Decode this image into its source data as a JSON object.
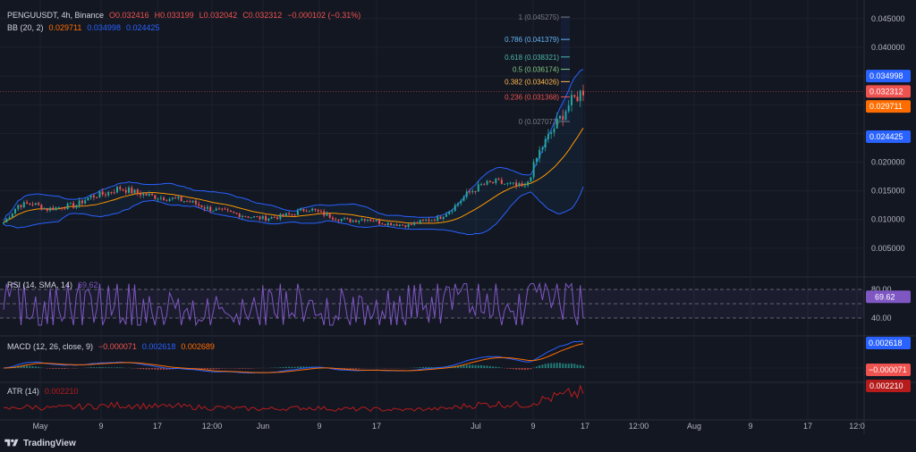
{
  "header": {
    "symbol": "PENGUUSDT, 4h, Binance",
    "o": "O0.032416",
    "h": "H0.033199",
    "l": "L0.032042",
    "c": "C0.032312",
    "chg": "−0.000102 (−0.31%)",
    "bb_label": "BB (20, 2)",
    "bb_v1": "0.029711",
    "bb_v2": "0.034998",
    "bb_v3": "0.024425"
  },
  "rsi": {
    "label": "RSI (14, SMA, 14)",
    "value": "69.62"
  },
  "macd": {
    "label": "MACD (12, 26, close, 9)",
    "v1": "−0.000071",
    "v2": "0.002618",
    "v3": "0.002689"
  },
  "atr": {
    "label": "ATR (14)",
    "value": "0.002210"
  },
  "footer": {
    "brand": "TradingView"
  },
  "colors": {
    "bg": "#131722",
    "up": "#26a69a",
    "down": "#ef5350",
    "band": "#2962ff",
    "basis": "#ff9800",
    "rsi": "#7e57c2",
    "macd": "#2962ff",
    "signal": "#ff6d00",
    "atr": "#b71c1c"
  },
  "chart_data": {
    "type": "candlestick",
    "price_axis": {
      "ticks": [
        "0.045000",
        "0.040000",
        "0.035000",
        "0.030000",
        "0.025000",
        "0.020000",
        "0.015000",
        "0.010000",
        "0.005000"
      ],
      "badges": [
        {
          "text": "0.034998",
          "value": 0.034998,
          "color": "#2962ff"
        },
        {
          "text": "0.032312",
          "value": 0.032312,
          "color": "#ef5350"
        },
        {
          "text": "0.029711",
          "value": 0.029711,
          "color": "#ff6d00"
        },
        {
          "text": "0.024425",
          "value": 0.024425,
          "color": "#2962ff"
        }
      ]
    },
    "rsi_axis": {
      "ticks": [
        "80.00",
        "40.00"
      ],
      "badge": "69.62"
    },
    "macd_badges": [
      {
        "text": "0.002618",
        "color": "#2962ff"
      },
      {
        "text": "−0.000071",
        "color": "#ef5350"
      }
    ],
    "atr_badge": {
      "text": "0.002210",
      "color": "#b71c1c"
    },
    "time_axis": [
      "May",
      "9",
      "17",
      "12:00",
      "Jun",
      "9",
      "17",
      "Jul",
      "9",
      "17",
      "12:00",
      "Aug",
      "9",
      "17",
      "12:0"
    ],
    "fib_levels": [
      {
        "label": "1 (0.045275)",
        "value": 0.045275,
        "color": "#787b86"
      },
      {
        "label": "0.786 (0.041379)",
        "value": 0.041379,
        "color": "#64b5f6"
      },
      {
        "label": "0.618 (0.038321)",
        "value": 0.038321,
        "color": "#4db6ac"
      },
      {
        "label": "0.5 (0.036174)",
        "value": 0.036174,
        "color": "#81c784"
      },
      {
        "label": "0.382 (0.034026)",
        "value": 0.034026,
        "color": "#ffb74d"
      },
      {
        "label": "0.236 (0.031368)",
        "value": 0.031368,
        "color": "#ef5350"
      },
      {
        "label": "0 (0.027073)",
        "value": 0.027073,
        "color": "#787b86"
      }
    ],
    "approx_close_path": [
      0.0095,
      0.0125,
      0.0128,
      0.0118,
      0.0122,
      0.0125,
      0.014,
      0.0145,
      0.0155,
      0.0148,
      0.0142,
      0.0138,
      0.0135,
      0.013,
      0.012,
      0.0115,
      0.011,
      0.0105,
      0.0102,
      0.0105,
      0.011,
      0.012,
      0.011,
      0.0102,
      0.0098,
      0.0102,
      0.0095,
      0.0092,
      0.009,
      0.0098,
      0.0102,
      0.012,
      0.0145,
      0.016,
      0.0165,
      0.016,
      0.0155,
      0.022,
      0.026,
      0.03,
      0.0325
    ]
  }
}
